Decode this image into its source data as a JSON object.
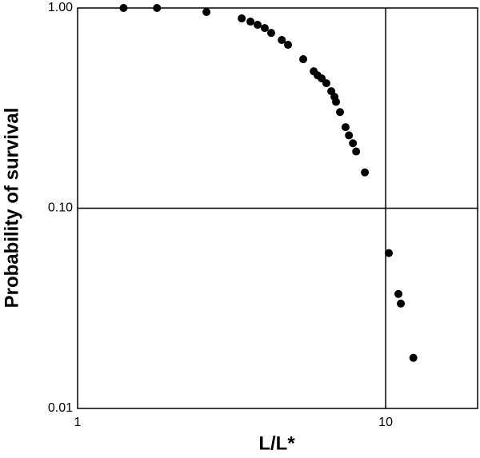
{
  "chart_data": {
    "type": "scatter",
    "x_label": "L/L*",
    "y_label": "Probability of survival",
    "x_log": true,
    "y_log": true,
    "color": "#000000",
    "xlim": [
      1,
      20
    ],
    "ylim": [
      0.01,
      1
    ],
    "xticks": [
      1,
      10
    ],
    "yticks": [
      {
        "value": 0.01,
        "label": "0.01"
      },
      {
        "value": 0.1,
        "label": "0.10"
      },
      {
        "value": 1,
        "label": "1.00"
      }
    ],
    "reference_lines": {
      "x": [
        10
      ],
      "y": [
        0.1
      ]
    },
    "x": [
      1.41,
      1.81,
      2.62,
      3.41,
      3.64,
      3.84,
      4.05,
      4.25,
      4.6,
      4.82,
      5.4,
      5.84,
      6.01,
      6.2,
      6.42,
      6.66,
      6.82,
      6.9,
      7.11,
      7.41,
      7.6,
      7.83,
      8.02,
      8.56,
      10.24,
      11.0,
      11.2,
      12.3
    ],
    "values": [
      1.0,
      1.0,
      0.955,
      0.887,
      0.855,
      0.824,
      0.794,
      0.751,
      0.692,
      0.655,
      0.555,
      0.483,
      0.461,
      0.445,
      0.421,
      0.384,
      0.36,
      0.34,
      0.302,
      0.254,
      0.231,
      0.211,
      0.192,
      0.151,
      0.0597,
      0.0373,
      0.0334,
      0.0179
    ]
  }
}
